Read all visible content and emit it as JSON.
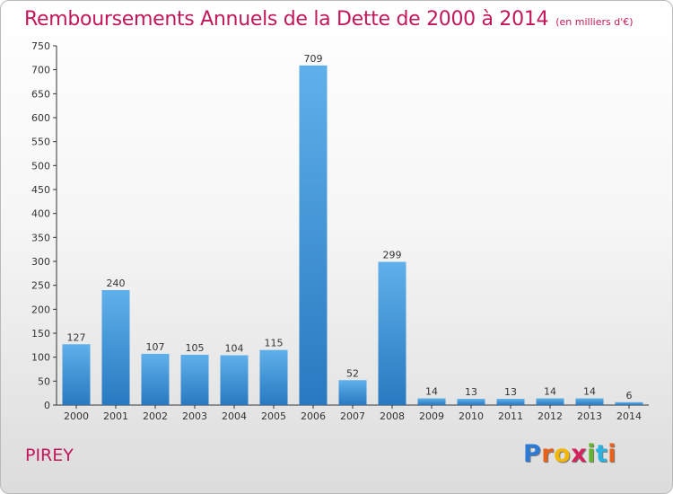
{
  "chart_data": {
    "type": "bar",
    "title": "Remboursements Annuels de la Dette de 2000 à 2014",
    "subtitle": "(en milliers d'€)",
    "categories": [
      "2000",
      "2001",
      "2002",
      "2003",
      "2004",
      "2005",
      "2006",
      "2007",
      "2008",
      "2009",
      "2010",
      "2011",
      "2012",
      "2013",
      "2014"
    ],
    "values": [
      127,
      240,
      107,
      105,
      104,
      115,
      709,
      52,
      299,
      14,
      13,
      13,
      14,
      14,
      6
    ],
    "ylim": [
      0,
      750
    ],
    "yticks": [
      0,
      50,
      100,
      150,
      200,
      250,
      300,
      350,
      400,
      450,
      500,
      550,
      600,
      650,
      700,
      750
    ],
    "xlabel": "",
    "ylabel": "",
    "grid": false,
    "bar_color": "#3a8fd8",
    "data_labels": true
  },
  "footer": {
    "location": "PIREY",
    "logo_letters": [
      "P",
      "r",
      "o",
      "x",
      "i",
      "t",
      "i"
    ],
    "logo_colors": [
      "#2b7bd6",
      "#e8611a",
      "#f2b705",
      "#d4245c",
      "#63b52e",
      "#2bb3e0",
      "#e8611a"
    ]
  },
  "colors": {
    "title": "#c2185b",
    "axis": "#333333"
  }
}
